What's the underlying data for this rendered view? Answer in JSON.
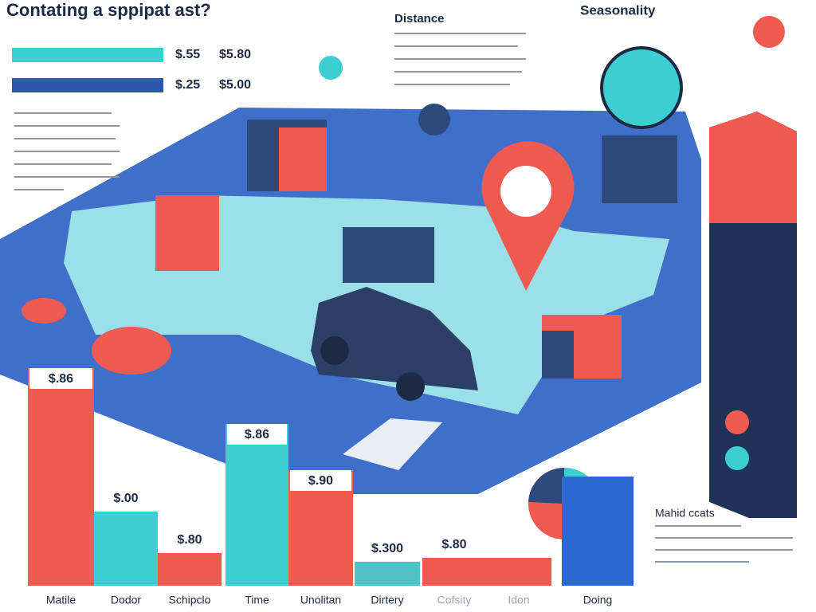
{
  "header": {
    "title": "Contating a sppipat ast?"
  },
  "legend": [
    {
      "min": "$.55",
      "max": "$5.80"
    },
    {
      "min": "$.25",
      "max": "$5.00"
    }
  ],
  "sections": {
    "distance": "Distance",
    "seasonality": "Seasonality",
    "note": "Mahid ccats"
  },
  "bars": [
    {
      "label": "$.86",
      "category": "Matile"
    },
    {
      "label": "$.00",
      "category": "Dodor"
    },
    {
      "label": "$.80",
      "category": "Schipclo"
    },
    {
      "label": "$.86",
      "category": "Time"
    },
    {
      "label": "$.90",
      "category": "Unolitan"
    },
    {
      "label": "$.300",
      "category": "Dirtery"
    },
    {
      "label": "$.80",
      "category": "Cofsity"
    },
    {
      "category": "Idon"
    },
    {
      "category": "Doing"
    }
  ]
}
